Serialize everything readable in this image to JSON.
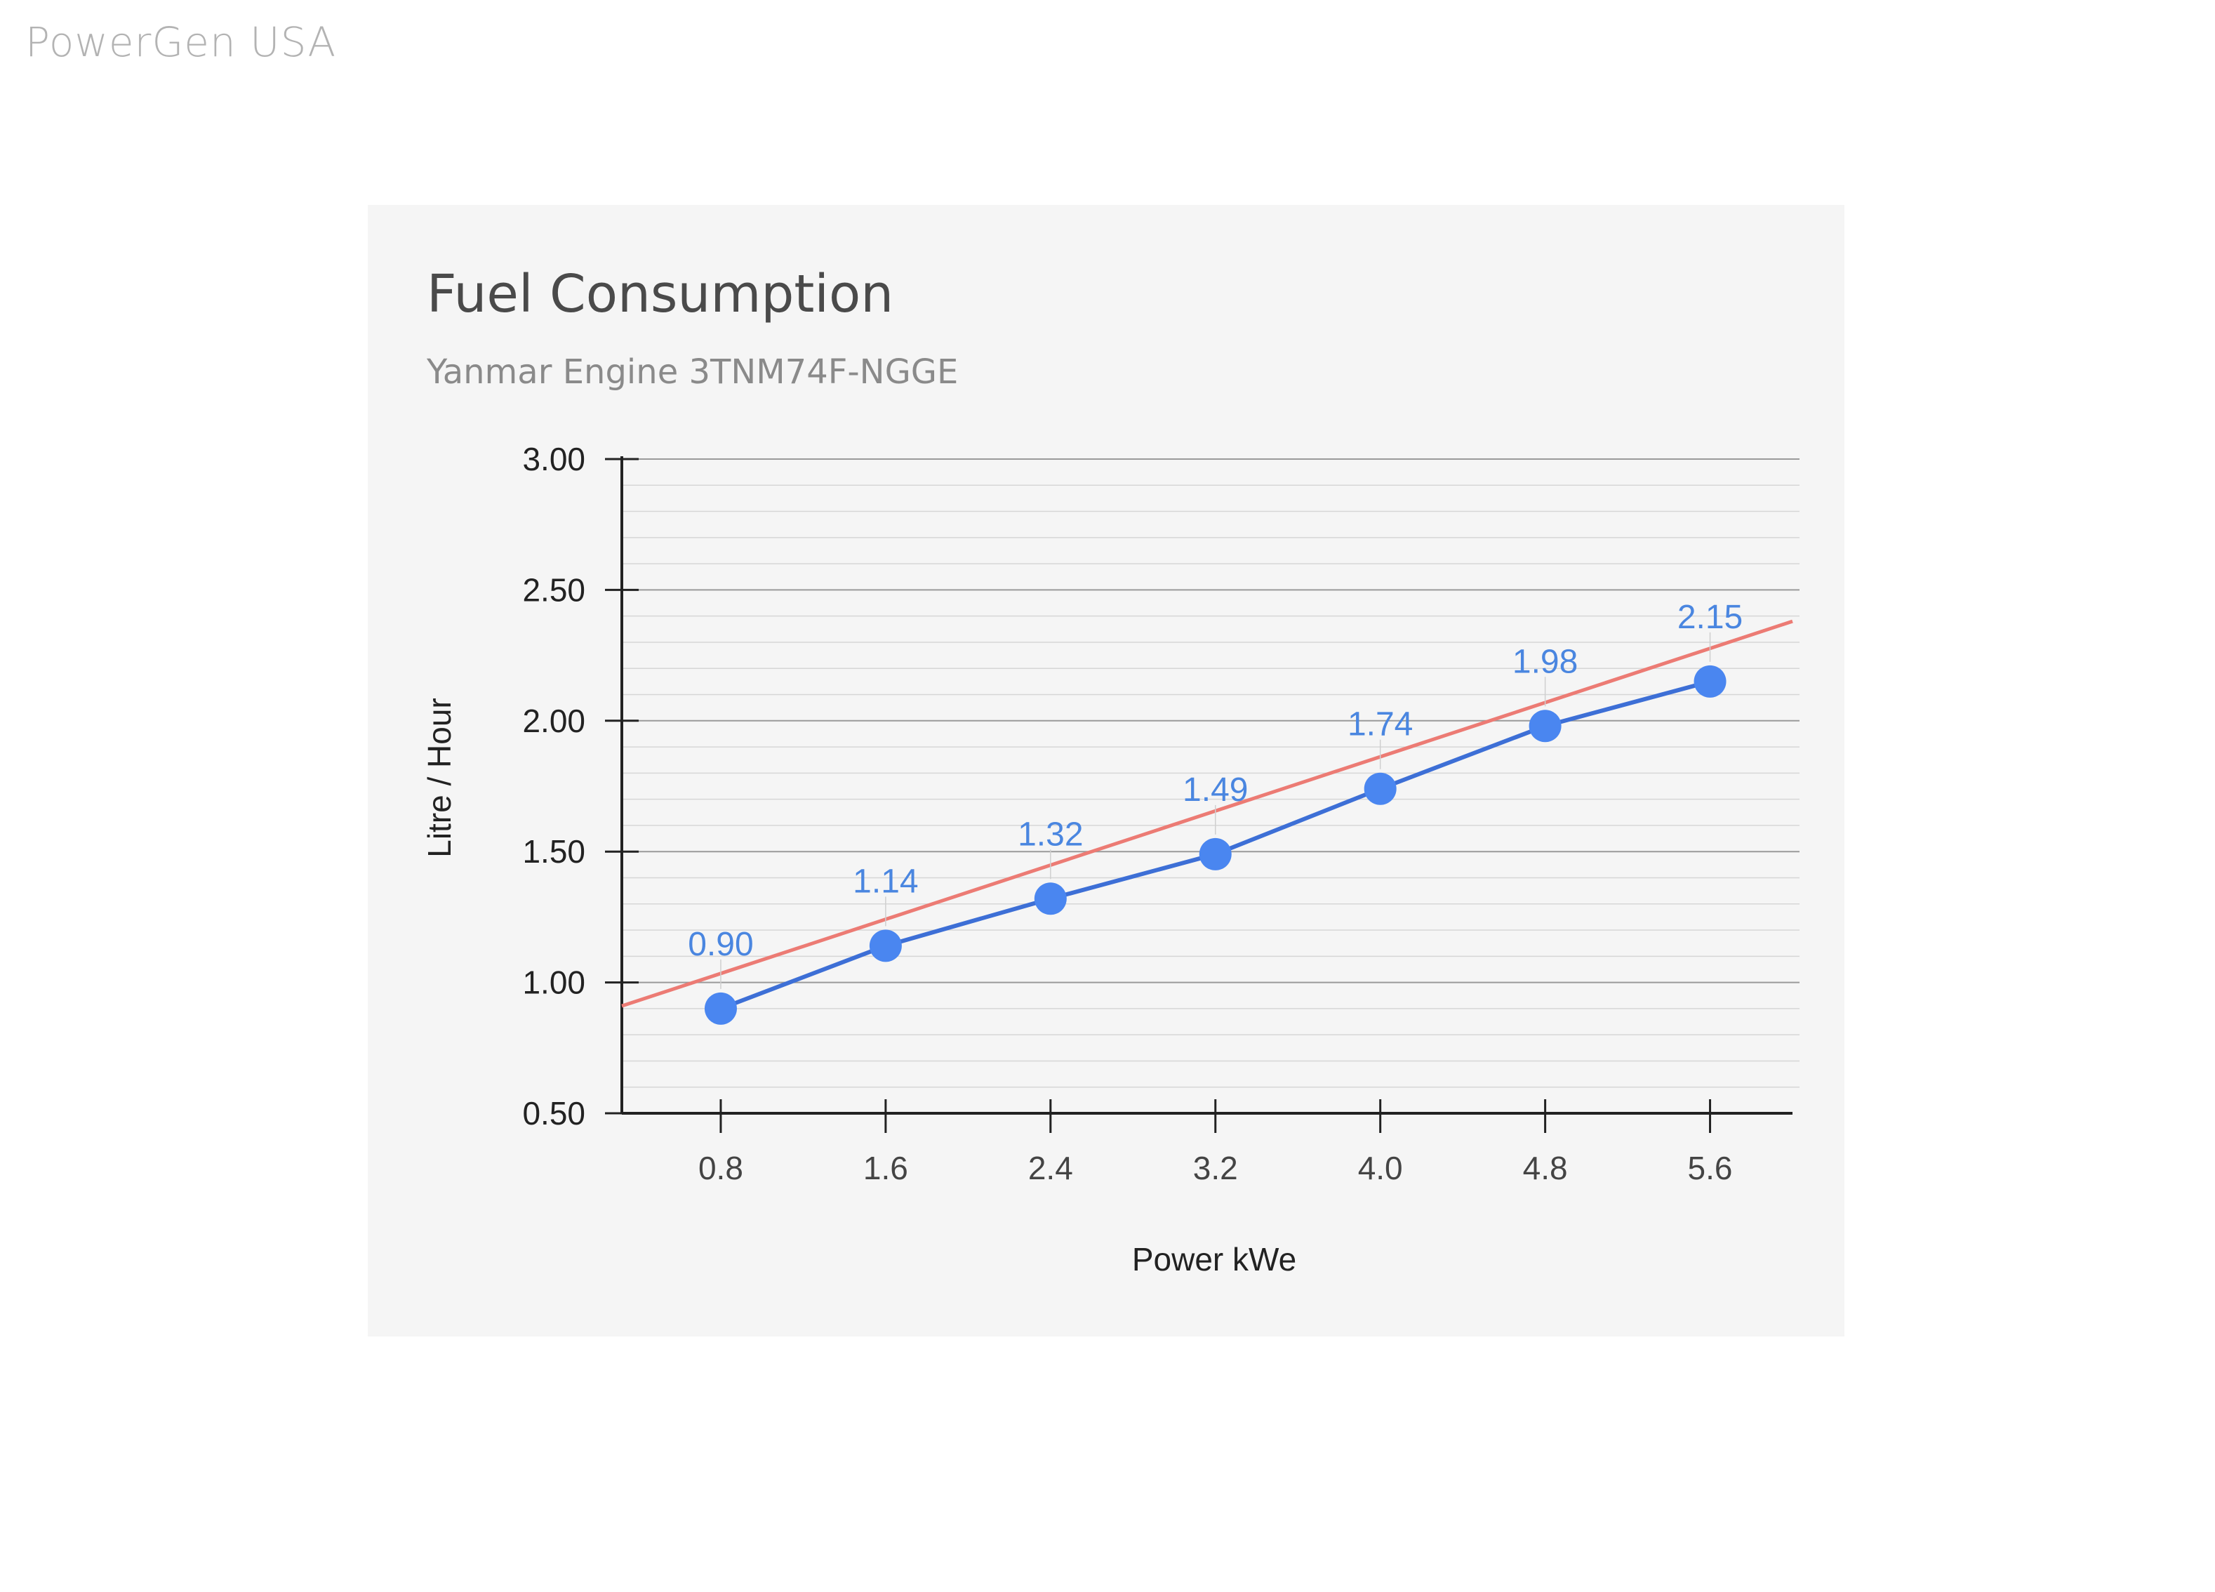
{
  "brand": {
    "text": "PowerGen USA"
  },
  "chart_data": {
    "type": "line",
    "title": "Fuel Consumption",
    "subtitle": "Yanmar Engine 3TNM74F-NGGE",
    "xlabel": "Power kWe",
    "ylabel": "Litre / Hour",
    "x": [
      "0.8",
      "1.6",
      "2.4",
      "3.2",
      "4.0",
      "4.8",
      "5.6"
    ],
    "series": [
      {
        "values": [
          0.9,
          1.14,
          1.32,
          1.49,
          1.74,
          1.98,
          2.15
        ],
        "color": "#3d6fd6",
        "marker_color": "#4a86f0"
      }
    ],
    "trendline": {
      "color": "#ec7b74",
      "x": [
        0.32,
        6.0
      ],
      "y": [
        0.91,
        2.38
      ]
    },
    "data_labels": [
      "0.90",
      "1.14",
      "1.32",
      "1.49",
      "1.74",
      "1.98",
      "2.15"
    ],
    "ylim": [
      0.5,
      3.0
    ],
    "yticks": [
      "0.50",
      "1.00",
      "1.50",
      "2.00",
      "2.50",
      "3.00"
    ],
    "grid": true,
    "legend": "none"
  }
}
